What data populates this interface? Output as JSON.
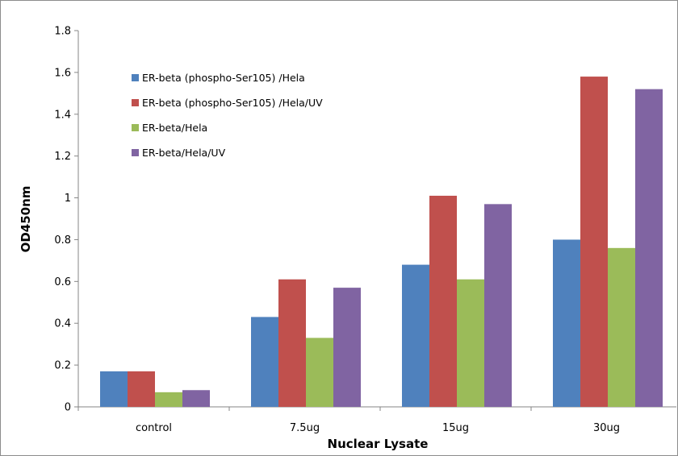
{
  "chart_data": {
    "type": "bar",
    "title": "",
    "xlabel": "Nuclear Lysate",
    "ylabel": "OD450nm",
    "ylim": [
      0,
      1.8
    ],
    "yticks": [
      0,
      0.2,
      0.4,
      0.6,
      0.8,
      1,
      1.2,
      1.4,
      1.6,
      1.8
    ],
    "ytick_labels": [
      "0",
      "0.2",
      "0.4",
      "0.6",
      "0.8",
      "1",
      "1.2",
      "1.4",
      "1.6",
      "1.8"
    ],
    "categories": [
      "control",
      "7.5ug",
      "15ug",
      "30ug"
    ],
    "grid": false,
    "legend_position": "top-left",
    "series": [
      {
        "name": "ER-beta (phospho-Ser105) /Hela",
        "color": "#4F81BD",
        "values": [
          0.17,
          0.43,
          0.68,
          0.8
        ]
      },
      {
        "name": "ER-beta (phospho-Ser105) /Hela/UV",
        "color": "#C0504D",
        "values": [
          0.17,
          0.61,
          1.01,
          1.58
        ]
      },
      {
        "name": "ER-beta/Hela",
        "color": "#9BBB59",
        "values": [
          0.07,
          0.33,
          0.61,
          0.76
        ]
      },
      {
        "name": "ER-beta/Hela/UV",
        "color": "#8064A2",
        "values": [
          0.08,
          0.57,
          0.97,
          1.52
        ]
      }
    ]
  }
}
